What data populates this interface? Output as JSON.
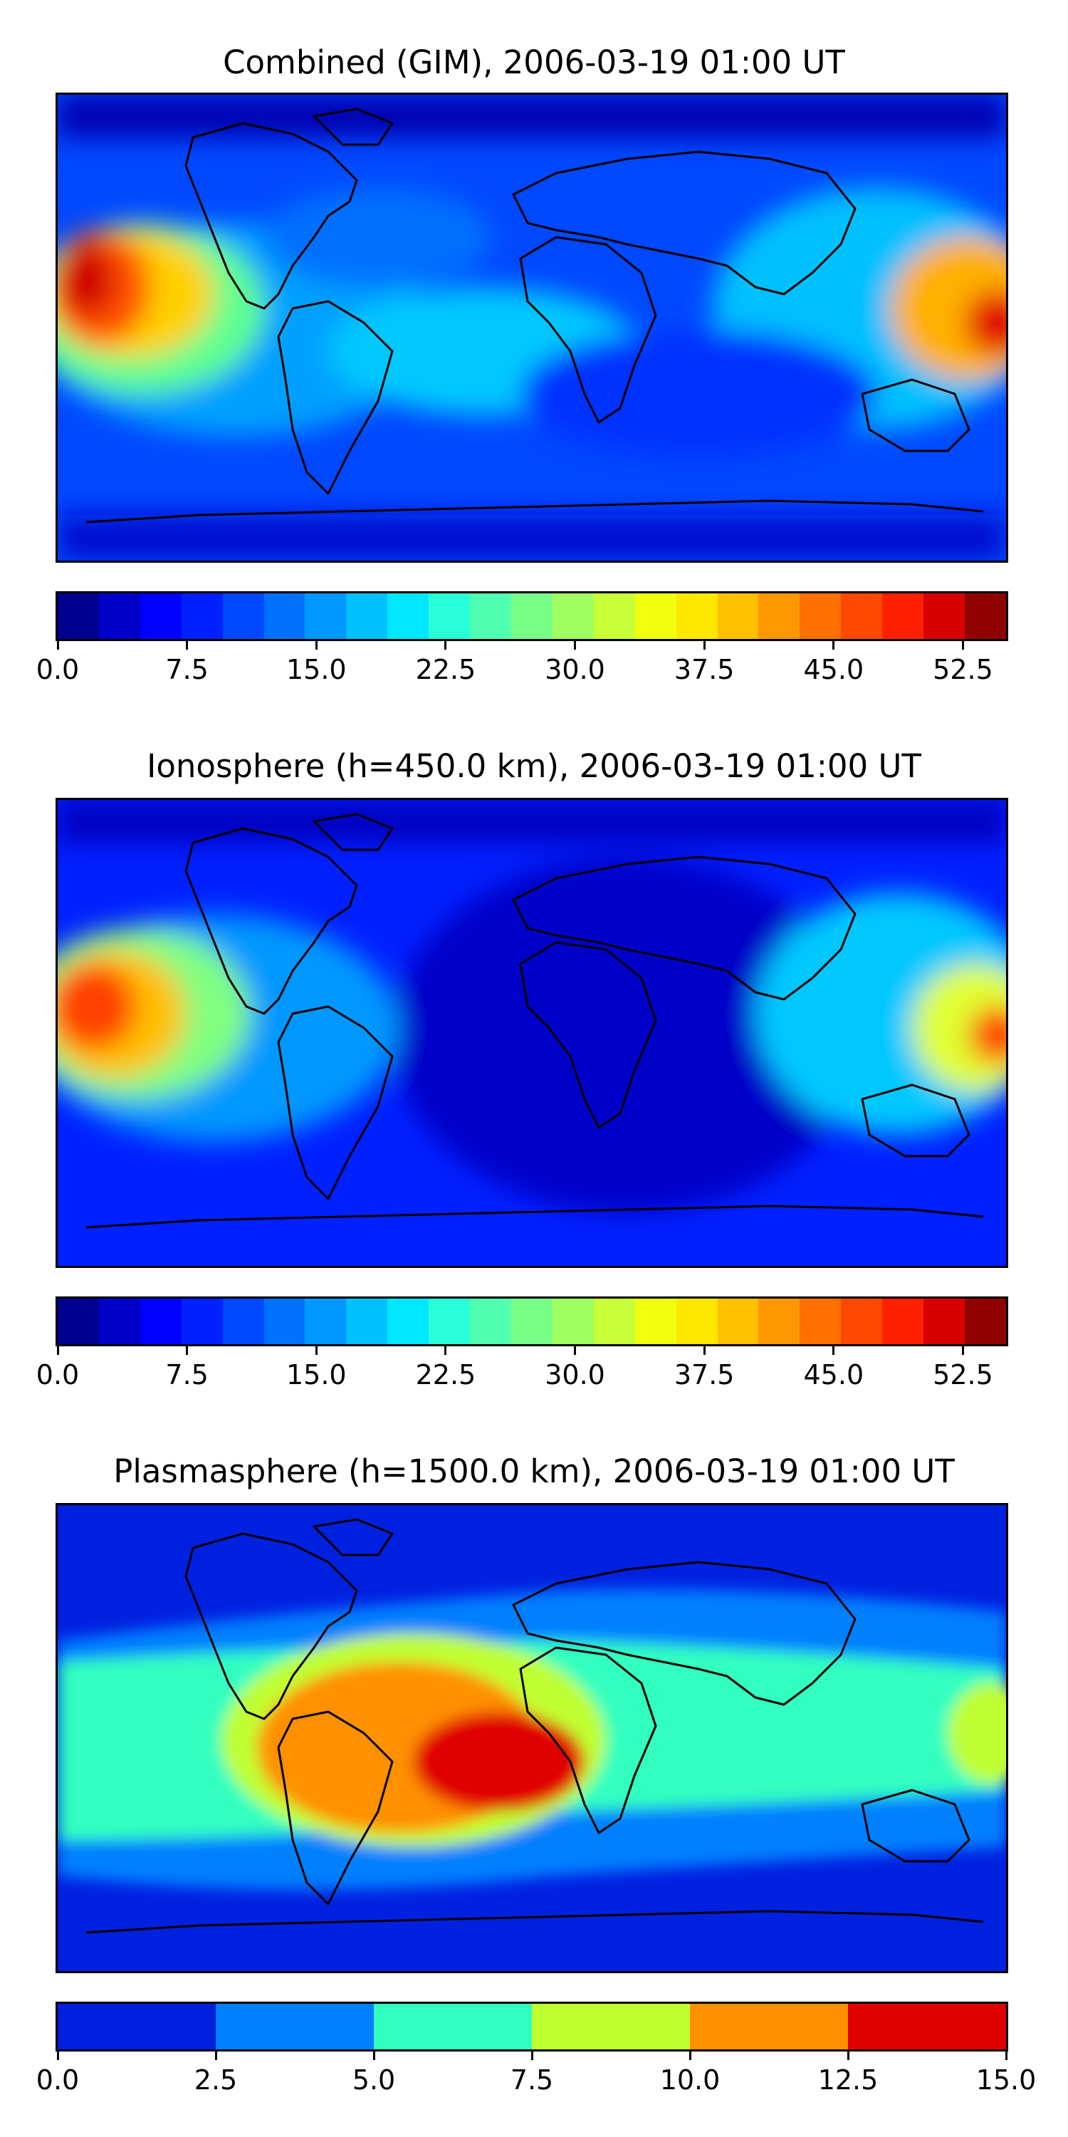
{
  "panels": [
    {
      "title": "Combined (GIM), 2006-03-19 01:00 UT",
      "colorbar": {
        "colors": [
          "#00008f",
          "#0000c8",
          "#0000ff",
          "#0020ff",
          "#0048ff",
          "#0070ff",
          "#0098ff",
          "#00c0ff",
          "#00e8ff",
          "#28ffd8",
          "#50ffb0",
          "#78ff88",
          "#a0ff60",
          "#c8ff38",
          "#f0ff10",
          "#ffe800",
          "#ffc000",
          "#ff9800",
          "#ff7000",
          "#ff4800",
          "#ff2000",
          "#d80000",
          "#8f0000"
        ],
        "ticks": [
          "0.0",
          "7.5",
          "15.0",
          "22.5",
          "30.0",
          "37.5",
          "45.0",
          "52.5"
        ],
        "tick_values": [
          0,
          7.5,
          15,
          22.5,
          30,
          37.5,
          45,
          52.5
        ],
        "vmin": 0,
        "vmax": 55
      }
    },
    {
      "title": "Ionosphere  (h=450.0 km), 2006-03-19 01:00 UT",
      "colorbar": {
        "colors": [
          "#00008f",
          "#0000c8",
          "#0000ff",
          "#0020ff",
          "#0048ff",
          "#0070ff",
          "#0098ff",
          "#00c0ff",
          "#00e8ff",
          "#28ffd8",
          "#50ffb0",
          "#78ff88",
          "#a0ff60",
          "#c8ff38",
          "#f0ff10",
          "#ffe800",
          "#ffc000",
          "#ff9800",
          "#ff7000",
          "#ff4800",
          "#ff2000",
          "#d80000",
          "#8f0000"
        ],
        "ticks": [
          "0.0",
          "7.5",
          "15.0",
          "22.5",
          "30.0",
          "37.5",
          "45.0",
          "52.5"
        ],
        "tick_values": [
          0,
          7.5,
          15,
          22.5,
          30,
          37.5,
          45,
          52.5
        ],
        "vmin": 0,
        "vmax": 55
      }
    },
    {
      "title": "Plasmasphere (h=1500.0 km), 2006-03-19 01:00 UT",
      "colorbar": {
        "colors": [
          "#0020e0",
          "#0080ff",
          "#30ffc0",
          "#c0ff30",
          "#ff9000",
          "#e00000"
        ],
        "ticks": [
          "0.0",
          "2.5",
          "5.0",
          "7.5",
          "10.0",
          "12.5",
          "15.0"
        ],
        "tick_values": [
          0,
          2.5,
          5,
          7.5,
          10,
          12.5,
          15
        ],
        "vmin": 0,
        "vmax": 15
      }
    }
  ]
}
